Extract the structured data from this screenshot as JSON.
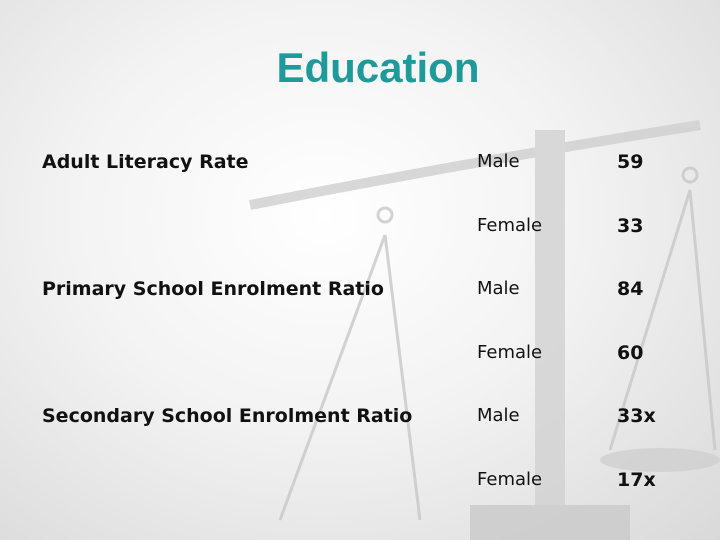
{
  "title": "Education",
  "table": {
    "groups": [
      {
        "label": "Adult Literacy Rate",
        "rows": [
          [
            "Male",
            59
          ],
          [
            "Female",
            33
          ]
        ]
      },
      {
        "label": "Primary School Enrolment Ratio",
        "rows": [
          [
            "Male",
            84
          ],
          [
            "Female",
            60
          ]
        ]
      },
      {
        "label": "Secondary School Enrolment Ratio",
        "rows": [
          [
            "Male",
            "33x"
          ],
          [
            "Female",
            "17x"
          ]
        ]
      }
    ]
  }
}
